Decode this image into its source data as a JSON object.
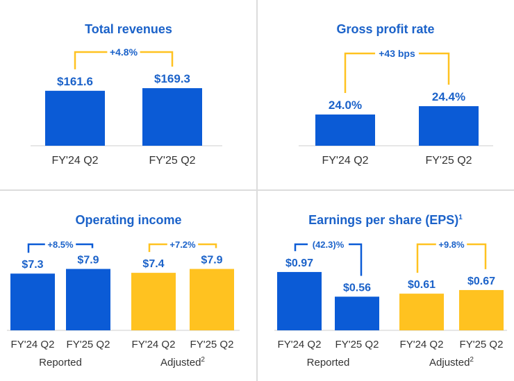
{
  "colors": {
    "blue": "#0b5bd6",
    "yellow": "#ffc220",
    "title": "#1b62c9",
    "label": "#1b62c9",
    "axis": "#333333",
    "divider": "#dcdcdc"
  },
  "chart_data": [
    {
      "type": "bar",
      "title": "Total revenues",
      "categories": [
        "FY'24 Q2",
        "FY'25 Q2"
      ],
      "values": [
        161.6,
        169.3
      ],
      "value_labels": [
        "$161.6",
        "$169.3"
      ],
      "change_label": "+4.8%",
      "ylim": [
        0,
        200
      ]
    },
    {
      "type": "bar",
      "title": "Gross profit rate",
      "categories": [
        "FY'24 Q2",
        "FY'25 Q2"
      ],
      "values": [
        24.0,
        24.4
      ],
      "value_labels": [
        "24.0%",
        "24.4%"
      ],
      "change_label": "+43 bps",
      "ylim": [
        22.5,
        25.5
      ]
    },
    {
      "type": "bar",
      "title": "Operating income",
      "title_sup": "",
      "ylim": [
        0,
        10
      ],
      "groups": [
        {
          "label": "Reported",
          "color": "blue",
          "categories": [
            "FY'24 Q2",
            "FY'25 Q2"
          ],
          "values": [
            7.3,
            7.9
          ],
          "value_labels": [
            "$7.3",
            "$7.9"
          ],
          "change_label": "+8.5%"
        },
        {
          "label": "Adjusted",
          "label_sup": "2",
          "color": "yellow",
          "categories": [
            "FY'24 Q2",
            "FY'25 Q2"
          ],
          "values": [
            7.4,
            7.9
          ],
          "value_labels": [
            "$7.4",
            "$7.9"
          ],
          "change_label": "+7.2%"
        }
      ]
    },
    {
      "type": "bar",
      "title": "Earnings per share (EPS)",
      "title_sup": "1",
      "ylim": [
        0,
        1.2
      ],
      "groups": [
        {
          "label": "Reported",
          "color": "blue",
          "categories": [
            "FY'24 Q2",
            "FY'25 Q2"
          ],
          "values": [
            0.97,
            0.56
          ],
          "value_labels": [
            "$0.97",
            "$0.56"
          ],
          "change_label": "(42.3)%"
        },
        {
          "label": "Adjusted",
          "label_sup": "2",
          "color": "yellow",
          "categories": [
            "FY'24 Q2",
            "FY'25 Q2"
          ],
          "values": [
            0.61,
            0.67
          ],
          "value_labels": [
            "$0.61",
            "$0.67"
          ],
          "change_label": "+9.8%"
        }
      ]
    }
  ]
}
